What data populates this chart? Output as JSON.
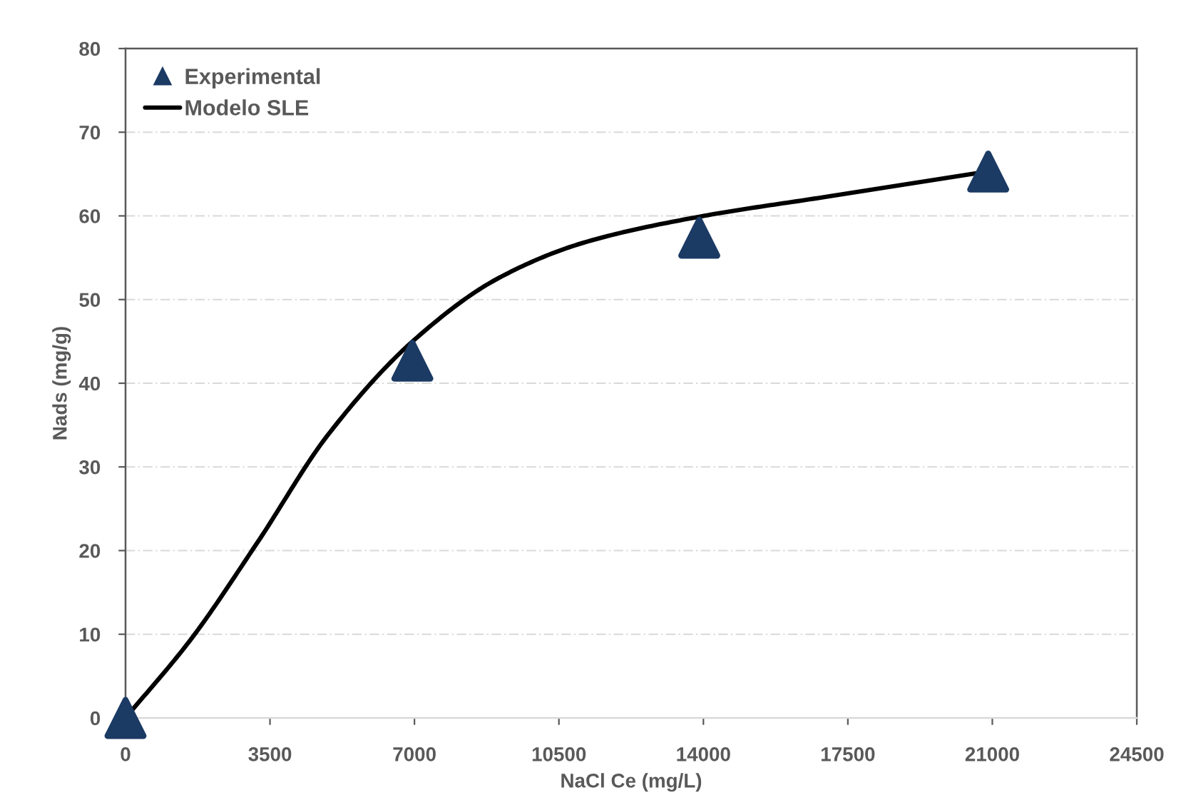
{
  "chart_data": {
    "type": "scatter",
    "xlabel": "NaCl Ce (mg/L)",
    "ylabel": "Nads (mg/g)",
    "xlim": [
      0,
      24500
    ],
    "xticks": [
      0,
      3500,
      7000,
      10500,
      14000,
      17500,
      21000,
      24500
    ],
    "ylim": [
      0,
      80
    ],
    "yticks": [
      0,
      10,
      20,
      30,
      40,
      50,
      60,
      70,
      80
    ],
    "grid": "y",
    "legend": "top left",
    "series": [
      {
        "name": "Experimental",
        "color": "#1b3a64",
        "marker": "triangle",
        "x": [
          0,
          6950,
          13900,
          20900
        ],
        "values": [
          0,
          42.7,
          57.4,
          65.3
        ]
      },
      {
        "name": "Modelo SLE",
        "type": "line",
        "color": "#000000",
        "marker": "none",
        "line_style": "solid",
        "x": [
          0,
          1600,
          3200,
          4900,
          7000,
          9050,
          11100,
          13900,
          17000,
          21000
        ],
        "values": [
          0,
          9.5,
          21,
          33.8,
          45.2,
          52.6,
          56.8,
          59.9,
          62.3,
          65.4
        ]
      }
    ]
  }
}
